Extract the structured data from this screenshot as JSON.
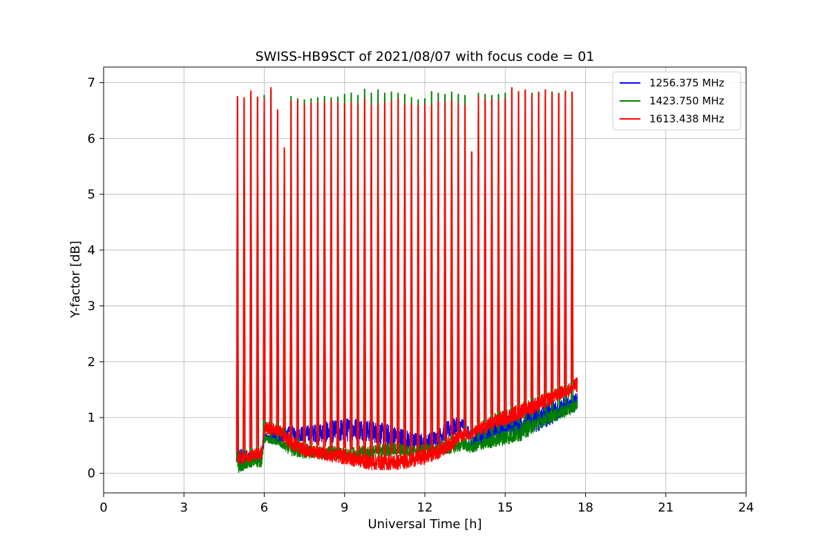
{
  "chart_data": {
    "type": "line",
    "title": "SWISS-HB9SCT of 2021/08/07 with focus code = 01",
    "xlabel": "Universal Time [h]",
    "ylabel": "Y-factor [dB]",
    "xlim": [
      0,
      24
    ],
    "ylim": [
      -0.35,
      7.28
    ],
    "xticks": [
      0,
      3,
      6,
      9,
      12,
      15,
      18,
      21,
      24
    ],
    "yticks": [
      0,
      1,
      2,
      3,
      4,
      5,
      6,
      7
    ],
    "grid": true,
    "legend_position": "top-right",
    "spikes": {
      "x": [
        5.0,
        5.25,
        5.5,
        5.75,
        6.0,
        6.25,
        6.5,
        6.75,
        7.0,
        7.25,
        7.5,
        7.75,
        8.0,
        8.25,
        8.5,
        8.75,
        9.0,
        9.25,
        9.5,
        9.75,
        10.0,
        10.25,
        10.5,
        10.75,
        11.0,
        11.25,
        11.5,
        11.75,
        12.0,
        12.25,
        12.5,
        12.75,
        13.0,
        13.25,
        13.5,
        13.75,
        14.0,
        14.25,
        14.5,
        14.75,
        15.0,
        15.25,
        15.5,
        15.75,
        16.0,
        16.25,
        16.5,
        16.75,
        17.0,
        17.25,
        17.5
      ],
      "peak_red": [
        6.76,
        6.74,
        6.86,
        6.75,
        6.72,
        6.92,
        6.52,
        5.84,
        6.68,
        6.68,
        6.6,
        6.64,
        6.65,
        6.66,
        6.68,
        6.66,
        6.62,
        6.65,
        6.62,
        6.72,
        6.6,
        6.62,
        6.65,
        6.68,
        6.72,
        6.6,
        6.62,
        6.6,
        6.62,
        6.6,
        6.68,
        6.66,
        6.7,
        6.62,
        6.6,
        5.77,
        6.76,
        6.7,
        6.72,
        6.68,
        6.72,
        6.92,
        6.85,
        6.88,
        6.8,
        6.82,
        6.88,
        6.82,
        6.8,
        6.85,
        6.84
      ],
      "peak_green": [
        6.72,
        6.7,
        6.8,
        6.73,
        6.78,
        6.88,
        6.5,
        5.8,
        6.76,
        6.72,
        6.7,
        6.72,
        6.74,
        6.76,
        6.74,
        6.75,
        6.8,
        6.82,
        6.78,
        6.89,
        6.82,
        6.88,
        6.82,
        6.84,
        6.82,
        6.8,
        6.74,
        6.7,
        6.72,
        6.85,
        6.82,
        6.8,
        6.84,
        6.8,
        6.78,
        5.75,
        6.82,
        6.8,
        6.78,
        6.8,
        6.82,
        6.88,
        6.84,
        6.86,
        6.82,
        6.84,
        6.86,
        6.84,
        6.82,
        6.86,
        6.84
      ]
    },
    "series": [
      {
        "name": "1256.375 MHz",
        "color": "#0000ff",
        "band_x": [
          5.0,
          5.5,
          5.9,
          6.0,
          6.5,
          7.0,
          7.5,
          8.0,
          8.5,
          9.0,
          9.5,
          10.0,
          10.5,
          11.0,
          11.5,
          12.0,
          12.5,
          13.0,
          13.5,
          13.75,
          14.0,
          14.5,
          15.0,
          15.5,
          16.0,
          16.5,
          17.0,
          17.5,
          17.7
        ],
        "band_low": [
          0.05,
          0.15,
          0.2,
          0.55,
          0.5,
          0.6,
          0.55,
          0.55,
          0.55,
          0.55,
          0.6,
          0.55,
          0.5,
          0.45,
          0.4,
          0.4,
          0.5,
          0.65,
          0.75,
          0.4,
          0.45,
          0.5,
          0.6,
          0.65,
          0.7,
          0.8,
          0.95,
          1.1,
          1.2
        ],
        "band_high": [
          0.5,
          0.4,
          0.4,
          0.7,
          0.8,
          0.85,
          0.85,
          0.9,
          0.95,
          1.0,
          1.0,
          0.95,
          0.9,
          0.85,
          0.75,
          0.7,
          0.8,
          1.0,
          1.0,
          0.7,
          0.85,
          1.0,
          1.05,
          1.1,
          1.2,
          1.3,
          1.35,
          1.4,
          1.45
        ]
      },
      {
        "name": "1423.750 MHz",
        "color": "#008000",
        "band_x": [
          5.0,
          5.5,
          5.9,
          6.0,
          6.5,
          7.0,
          7.5,
          8.0,
          8.5,
          9.0,
          9.5,
          10.0,
          10.5,
          11.0,
          11.5,
          12.0,
          12.5,
          13.0,
          13.5,
          13.75,
          14.0,
          14.5,
          15.0,
          15.5,
          16.0,
          16.5,
          17.0,
          17.5,
          17.7
        ],
        "band_low": [
          0.0,
          0.1,
          0.1,
          0.55,
          0.5,
          0.3,
          0.25,
          0.25,
          0.25,
          0.2,
          0.2,
          0.25,
          0.3,
          0.3,
          0.3,
          0.3,
          0.3,
          0.35,
          0.4,
          0.35,
          0.4,
          0.45,
          0.5,
          0.55,
          0.7,
          0.85,
          0.95,
          1.05,
          1.15
        ],
        "band_high": [
          0.2,
          0.3,
          0.35,
          0.7,
          0.6,
          0.55,
          0.5,
          0.5,
          0.5,
          0.45,
          0.5,
          0.5,
          0.55,
          0.55,
          0.5,
          0.55,
          0.55,
          0.6,
          0.65,
          0.55,
          0.6,
          0.7,
          0.8,
          0.9,
          1.0,
          1.1,
          1.2,
          1.3,
          1.35
        ]
      },
      {
        "name": "1613.438 MHz",
        "color": "#ff0000",
        "band_x": [
          5.0,
          5.5,
          5.9,
          6.0,
          6.5,
          7.0,
          7.5,
          8.0,
          8.5,
          9.0,
          9.5,
          10.0,
          10.5,
          11.0,
          11.5,
          12.0,
          12.5,
          13.0,
          13.5,
          13.75,
          14.0,
          14.5,
          15.0,
          15.5,
          16.0,
          16.5,
          17.0,
          17.5,
          17.7
        ],
        "band_low": [
          0.15,
          0.2,
          0.25,
          0.7,
          0.65,
          0.4,
          0.3,
          0.25,
          0.2,
          0.15,
          0.1,
          0.05,
          0.05,
          0.05,
          0.1,
          0.15,
          0.25,
          0.4,
          0.6,
          0.6,
          0.65,
          0.75,
          0.85,
          0.95,
          1.05,
          1.15,
          1.3,
          1.4,
          1.45
        ],
        "band_high": [
          0.4,
          0.45,
          0.5,
          0.95,
          0.9,
          0.7,
          0.55,
          0.5,
          0.45,
          0.45,
          0.4,
          0.35,
          0.35,
          0.35,
          0.4,
          0.45,
          0.55,
          0.7,
          0.85,
          0.8,
          0.9,
          1.05,
          1.15,
          1.25,
          1.35,
          1.45,
          1.55,
          1.65,
          1.75
        ]
      }
    ]
  }
}
